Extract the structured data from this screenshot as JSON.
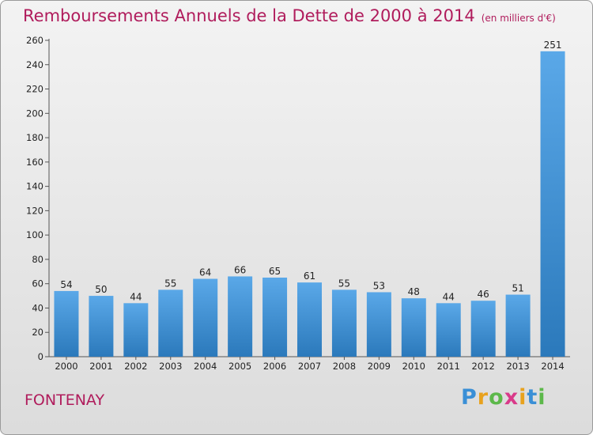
{
  "chart_data": {
    "type": "bar",
    "title": "Remboursements Annuels de la Dette de 2000 à 2014",
    "subtitle": "(en milliers d'€)",
    "categories": [
      "2000",
      "2001",
      "2002",
      "2003",
      "2004",
      "2005",
      "2006",
      "2007",
      "2008",
      "2009",
      "2010",
      "2011",
      "2012",
      "2013",
      "2014"
    ],
    "values": [
      54,
      50,
      44,
      55,
      64,
      66,
      65,
      61,
      55,
      53,
      48,
      44,
      46,
      51,
      251
    ],
    "ylim": [
      0,
      260
    ],
    "yticks": [
      0,
      20,
      40,
      60,
      80,
      100,
      120,
      140,
      160,
      180,
      200,
      220,
      240,
      260
    ],
    "grid": false,
    "legend": "none",
    "colors": {
      "bar_top": "#5aa8e8",
      "bar_bottom": "#2b79bb",
      "title": "#b01c5c"
    }
  },
  "place": "FONTENAY",
  "brand": {
    "letters": [
      "P",
      "r",
      "o",
      "x",
      "i",
      "t",
      "i"
    ],
    "colors": [
      "#3a8fd6",
      "#e8a21e",
      "#5cb84a",
      "#d93a8a",
      "#e8a21e",
      "#3a8fd6",
      "#5cb84a"
    ]
  }
}
